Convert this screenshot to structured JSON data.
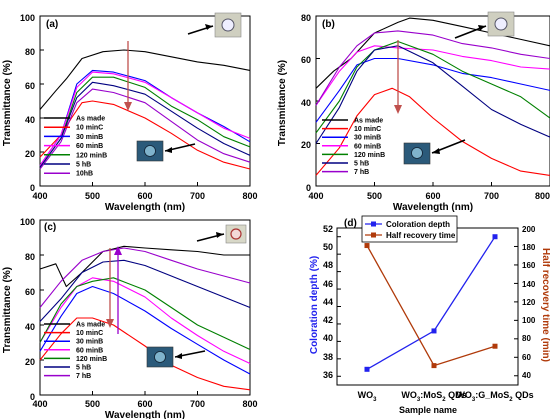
{
  "chart_data": [
    {
      "panel": "(a)",
      "type": "line",
      "xlabel": "Wavelength (nm)",
      "ylabel": "Transmittance (%)",
      "xlim": [
        400,
        800
      ],
      "ylim": [
        0,
        100
      ],
      "xticks": [
        "400",
        "500",
        "600",
        "700",
        "800"
      ],
      "yticks": [
        "0",
        "20",
        "40",
        "60",
        "80",
        "100"
      ],
      "legend_position": "bottom-left",
      "series": [
        {
          "name": "As made",
          "color": "#000000",
          "points": [
            [
              400,
              45
            ],
            [
              430,
              56
            ],
            [
              450,
              63
            ],
            [
              480,
              75
            ],
            [
              520,
              79
            ],
            [
              560,
              80
            ],
            [
              600,
              79
            ],
            [
              650,
              76
            ],
            [
              700,
              73
            ],
            [
              750,
              71
            ],
            [
              800,
              68
            ]
          ]
        },
        {
          "name": "10 minC",
          "color": "#ff0000",
          "points": [
            [
              400,
              17
            ],
            [
              440,
              30
            ],
            [
              460,
              40
            ],
            [
              480,
              49
            ],
            [
              500,
              50
            ],
            [
              540,
              48
            ],
            [
              600,
              40
            ],
            [
              650,
              31
            ],
            [
              700,
              21
            ],
            [
              750,
              14
            ],
            [
              800,
              10
            ]
          ]
        },
        {
          "name": "30 minB",
          "color": "#0000ff",
          "points": [
            [
              400,
              12
            ],
            [
              440,
              30
            ],
            [
              470,
              60
            ],
            [
              500,
              68
            ],
            [
              540,
              67
            ],
            [
              600,
              62
            ],
            [
              650,
              52
            ],
            [
              700,
              43
            ],
            [
              750,
              35
            ],
            [
              800,
              26
            ]
          ]
        },
        {
          "name": "60 minB",
          "color": "#ff00ff",
          "points": [
            [
              400,
              12
            ],
            [
              440,
              30
            ],
            [
              470,
              58
            ],
            [
              500,
              67
            ],
            [
              540,
              66
            ],
            [
              600,
              61
            ],
            [
              650,
              52
            ],
            [
              700,
              43
            ],
            [
              750,
              34
            ],
            [
              800,
              28
            ]
          ]
        },
        {
          "name": "120 minB",
          "color": "#008000",
          "points": [
            [
              400,
              11
            ],
            [
              440,
              28
            ],
            [
              470,
              55
            ],
            [
              500,
              64
            ],
            [
              540,
              64
            ],
            [
              600,
              58
            ],
            [
              650,
              47
            ],
            [
              700,
              39
            ],
            [
              750,
              29
            ],
            [
              800,
              23
            ]
          ]
        },
        {
          "name": "5 hB",
          "color": "#000080",
          "points": [
            [
              400,
              11
            ],
            [
              440,
              28
            ],
            [
              470,
              52
            ],
            [
              500,
              61
            ],
            [
              540,
              59
            ],
            [
              600,
              54
            ],
            [
              650,
              44
            ],
            [
              700,
              34
            ],
            [
              750,
              25
            ],
            [
              800,
              18
            ]
          ]
        },
        {
          "name": "10hB",
          "color": "#9900cc",
          "points": [
            [
              400,
              10
            ],
            [
              440,
              26
            ],
            [
              470,
              49
            ],
            [
              500,
              57
            ],
            [
              540,
              55
            ],
            [
              600,
              49
            ],
            [
              650,
              38
            ],
            [
              700,
              27
            ],
            [
              750,
              19
            ],
            [
              800,
              14
            ]
          ]
        }
      ]
    },
    {
      "panel": "(b)",
      "type": "line",
      "xlabel": "Wavelength (nm)",
      "ylabel": "Transmittance (%)",
      "xlim": [
        400,
        800
      ],
      "ylim": [
        0,
        80
      ],
      "xticks": [
        "400",
        "500",
        "600",
        "700",
        "800"
      ],
      "yticks": [
        "0",
        "20",
        "40",
        "60",
        "80"
      ],
      "legend_position": "bottom-left",
      "series": [
        {
          "name": "As made",
          "color": "#000000",
          "points": [
            [
              400,
              46
            ],
            [
              430,
              54
            ],
            [
              460,
              60
            ],
            [
              500,
              72
            ],
            [
              540,
              77
            ],
            [
              560,
              79
            ],
            [
              600,
              78
            ],
            [
              650,
              75
            ],
            [
              700,
              72
            ],
            [
              750,
              69
            ],
            [
              800,
              66
            ]
          ]
        },
        {
          "name": "10 minC",
          "color": "#ff0000",
          "points": [
            [
              400,
              5
            ],
            [
              440,
              18
            ],
            [
              470,
              33
            ],
            [
              500,
              43
            ],
            [
              530,
              46
            ],
            [
              560,
              42
            ],
            [
              600,
              32
            ],
            [
              650,
              21
            ],
            [
              700,
              13
            ],
            [
              750,
              7
            ],
            [
              800,
              5
            ]
          ]
        },
        {
          "name": "30 minB",
          "color": "#0000ff",
          "points": [
            [
              400,
              30
            ],
            [
              440,
              45
            ],
            [
              470,
              57
            ],
            [
              500,
              60
            ],
            [
              540,
              60
            ],
            [
              600,
              57
            ],
            [
              650,
              53
            ],
            [
              700,
              51
            ],
            [
              750,
              48
            ],
            [
              800,
              45
            ]
          ]
        },
        {
          "name": "60 minB",
          "color": "#ff00ff",
          "points": [
            [
              400,
              38
            ],
            [
              440,
              54
            ],
            [
              470,
              63
            ],
            [
              500,
              66
            ],
            [
              540,
              65
            ],
            [
              600,
              64
            ],
            [
              650,
              61
            ],
            [
              700,
              59
            ],
            [
              750,
              56
            ],
            [
              800,
              55
            ]
          ]
        },
        {
          "name": "120 minB",
          "color": "#008000",
          "points": [
            [
              400,
              25
            ],
            [
              440,
              40
            ],
            [
              470,
              56
            ],
            [
              500,
              64
            ],
            [
              540,
              68
            ],
            [
              600,
              62
            ],
            [
              650,
              54
            ],
            [
              700,
              48
            ],
            [
              750,
              42
            ],
            [
              800,
              32
            ]
          ]
        },
        {
          "name": "5 hB",
          "color": "#000080",
          "points": [
            [
              400,
              20
            ],
            [
              440,
              37
            ],
            [
              470,
              54
            ],
            [
              500,
              64
            ],
            [
              540,
              66
            ],
            [
              600,
              58
            ],
            [
              650,
              47
            ],
            [
              700,
              36
            ],
            [
              750,
              29
            ],
            [
              800,
              23
            ]
          ]
        },
        {
          "name": "7 hB",
          "color": "#9900cc",
          "points": [
            [
              400,
              38
            ],
            [
              440,
              56
            ],
            [
              470,
              66
            ],
            [
              500,
              72
            ],
            [
              540,
              73
            ],
            [
              600,
              71
            ],
            [
              650,
              67
            ],
            [
              700,
              65
            ],
            [
              750,
              62
            ],
            [
              800,
              60
            ]
          ]
        }
      ]
    },
    {
      "panel": "(c)",
      "type": "line",
      "xlabel": "Wavelength (nm)",
      "ylabel": "Transmittance (%)",
      "xlim": [
        400,
        800
      ],
      "ylim": [
        0,
        100
      ],
      "xticks": [
        "400",
        "500",
        "600",
        "700",
        "800"
      ],
      "yticks": [
        "0",
        "20",
        "40",
        "60",
        "80",
        "100"
      ],
      "legend_position": "bottom-left",
      "series": [
        {
          "name": "As made",
          "color": "#000000",
          "points": [
            [
              400,
              72
            ],
            [
              430,
              75
            ],
            [
              450,
              62
            ],
            [
              480,
              70
            ],
            [
              520,
              82
            ],
            [
              560,
              85
            ],
            [
              600,
              84
            ],
            [
              650,
              83
            ],
            [
              700,
              82
            ],
            [
              750,
              80
            ],
            [
              800,
              80
            ]
          ]
        },
        {
          "name": "10 minC",
          "color": "#ff0000",
          "points": [
            [
              400,
              20
            ],
            [
              440,
              35
            ],
            [
              470,
              44
            ],
            [
              500,
              44
            ],
            [
              540,
              40
            ],
            [
              600,
              28
            ],
            [
              650,
              17
            ],
            [
              700,
              10
            ],
            [
              750,
              5
            ],
            [
              800,
              3
            ]
          ]
        },
        {
          "name": "30 minB",
          "color": "#0000ff",
          "points": [
            [
              400,
              25
            ],
            [
              440,
              45
            ],
            [
              470,
              58
            ],
            [
              500,
              62
            ],
            [
              540,
              58
            ],
            [
              600,
              48
            ],
            [
              650,
              38
            ],
            [
              700,
              29
            ],
            [
              750,
              20
            ],
            [
              800,
              12
            ]
          ]
        },
        {
          "name": "60 minB",
          "color": "#ff00ff",
          "points": [
            [
              400,
              30
            ],
            [
              440,
              50
            ],
            [
              470,
              62
            ],
            [
              500,
              67
            ],
            [
              540,
              65
            ],
            [
              600,
              56
            ],
            [
              650,
              44
            ],
            [
              700,
              34
            ],
            [
              750,
              25
            ],
            [
              800,
              18
            ]
          ]
        },
        {
          "name": "120 minB",
          "color": "#008000",
          "points": [
            [
              400,
              30
            ],
            [
              440,
              52
            ],
            [
              470,
              62
            ],
            [
              500,
              65
            ],
            [
              540,
              67
            ],
            [
              600,
              60
            ],
            [
              650,
              50
            ],
            [
              700,
              40
            ],
            [
              750,
              33
            ],
            [
              800,
              26
            ]
          ]
        },
        {
          "name": "5 hB",
          "color": "#000080",
          "points": [
            [
              400,
              42
            ],
            [
              440,
              55
            ],
            [
              480,
              70
            ],
            [
              520,
              76
            ],
            [
              560,
              77
            ],
            [
              600,
              74
            ],
            [
              650,
              68
            ],
            [
              700,
              62
            ],
            [
              750,
              56
            ],
            [
              800,
              50
            ]
          ]
        },
        {
          "name": "7 hB",
          "color": "#9900cc",
          "points": [
            [
              400,
              50
            ],
            [
              440,
              65
            ],
            [
              480,
              77
            ],
            [
              520,
              82
            ],
            [
              560,
              84
            ],
            [
              600,
              82
            ],
            [
              650,
              77
            ],
            [
              700,
              72
            ],
            [
              750,
              68
            ],
            [
              800,
              64
            ]
          ]
        }
      ]
    },
    {
      "panel": "(d)",
      "type": "line",
      "xlabel": "Sample name",
      "ylabel": "Coloration depth (%)",
      "y2label": "Half recovery time (min)",
      "categories": [
        "WO3",
        "WO3:MoS2 QDs",
        "WO3:G_MoS2 QDs"
      ],
      "ylim": [
        35,
        53
      ],
      "y2lim": [
        30,
        200
      ],
      "yticks": [
        "36",
        "38",
        "40",
        "42",
        "44",
        "46",
        "48",
        "50",
        "52"
      ],
      "y2ticks": [
        "40",
        "60",
        "80",
        "100",
        "120",
        "140",
        "160",
        "180",
        "200"
      ],
      "legend_position": "top-left",
      "series": [
        {
          "name": "Coloration depth",
          "color": "#2222ee",
          "marker": "square",
          "axis": "left",
          "values": [
            36.8,
            41.2,
            52.0
          ]
        },
        {
          "name": "Half recovery time",
          "color": "#b03a0a",
          "marker": "square",
          "axis": "right",
          "values": [
            181,
            51,
            72
          ]
        }
      ]
    }
  ]
}
